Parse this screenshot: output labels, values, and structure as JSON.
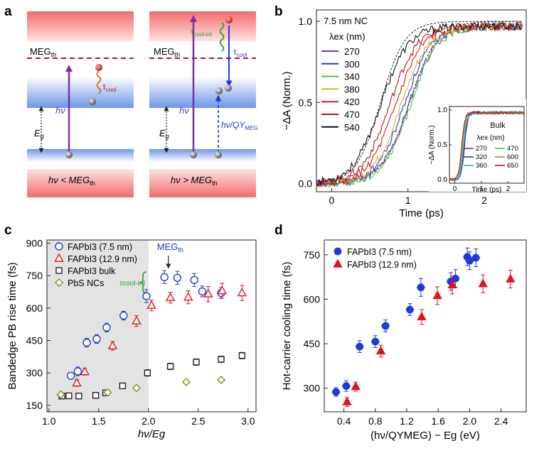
{
  "panels": {
    "a": {
      "label": "a",
      "left": {
        "meg_label": "MEG",
        "meg_sub": "th",
        "tau": "τ",
        "tau_sub": "cool",
        "hv": "hν",
        "eg": "E",
        "eg_sub": "g",
        "caption": "hν < MEG",
        "caption_sub": "th"
      },
      "right": {
        "meg_label": "MEG",
        "meg_sub": "th",
        "tau_int": "τ",
        "tau_int_sub": "cool-int",
        "tau": "τ",
        "tau_sub": "cool",
        "hv": "hν",
        "hv_qy": "hν/QY",
        "hv_qy_sub": "MEG",
        "eg": "E",
        "eg_sub": "g",
        "caption": "hν > MEG",
        "caption_sub": "th"
      }
    },
    "b": {
      "label": "b"
    },
    "c": {
      "label": "c"
    },
    "d": {
      "label": "d"
    }
  },
  "colors": {
    "purple": "#7b2fa8",
    "blue": "#2238d0",
    "red_dash": "#b0161c",
    "green": "#2aa02a",
    "orange": "#d26a1a",
    "gray_shade": "#e3e3e3",
    "olive": "#8a8a10",
    "red": "#e0141c",
    "pt_blue": "#1e3bd6"
  },
  "chart_data": [
    {
      "id": "b",
      "type": "line",
      "title": "7.5 nm NC",
      "xlabel": "Time (ps)",
      "ylabel": "−ΔA (Norm.)",
      "xlim": [
        -0.2,
        2.55
      ],
      "ylim": [
        -0.05,
        1.07
      ],
      "xticks": [
        0,
        1,
        2
      ],
      "yticks": [
        0.0,
        0.5,
        1.0
      ],
      "legend_title": "λex (nm)",
      "series": [
        {
          "name": "270",
          "color": "#7b2fa8",
          "t0": 1.01
        },
        {
          "name": "300",
          "color": "#2238d0",
          "t0": 0.95
        },
        {
          "name": "340",
          "color": "#3ccc3c",
          "t0": 1.03
        },
        {
          "name": "380",
          "color": "#e0b020",
          "t0": 0.91
        },
        {
          "name": "420",
          "color": "#e0141c",
          "t0": 0.84
        },
        {
          "name": "470",
          "color": "#a21a28",
          "t0": 0.76
        },
        {
          "name": "540",
          "color": "#111111",
          "t0": 0.64
        }
      ],
      "inset": {
        "title": "Bulk",
        "xlabel": "Time (ps)",
        "ylabel": "−ΔA (Norm.)",
        "xlim": [
          -0.2,
          2.6
        ],
        "ylim": [
          -0.05,
          1.05
        ],
        "xticks": [
          0,
          1,
          2
        ],
        "yticks": [
          0.0,
          0.5,
          1.0
        ],
        "legend_title": "λex (nm)",
        "series": [
          {
            "name": "270",
            "color": "#7b2fa8",
            "t0": 0.37
          },
          {
            "name": "320",
            "color": "#2238d0",
            "t0": 0.35
          },
          {
            "name": "360",
            "color": "#29b0c8",
            "t0": 0.33
          },
          {
            "name": "470",
            "color": "#3ccc3c",
            "t0": 0.3
          },
          {
            "name": "600",
            "color": "#e07020",
            "t0": 0.28
          },
          {
            "name": "650",
            "color": "#a21a28",
            "t0": 0.26
          }
        ]
      }
    },
    {
      "id": "c",
      "type": "scatter",
      "xlabel": "hν/Eg",
      "ylabel": "Bandedge PB rise time (fs)",
      "xlim": [
        0.98,
        3.08
      ],
      "ylim": [
        120,
        915
      ],
      "xticks": [
        1.0,
        1.5,
        2.0,
        2.5,
        3.0
      ],
      "yticks": [
        150,
        300,
        450,
        600,
        750,
        900
      ],
      "shade_x": [
        0.98,
        2.0
      ],
      "annotation_meg": "MEG",
      "annotation_meg_sub": "th",
      "annotation_meg_x": 2.2,
      "annotation_int": "τcool-int",
      "series": [
        {
          "name": "FAPbI3 (7.5 nm)",
          "marker": "circle",
          "color": "#1e3bd6",
          "x": [
            1.22,
            1.29,
            1.38,
            1.48,
            1.58,
            1.75,
            1.98,
            2.16,
            2.29,
            2.46,
            2.54,
            2.73
          ],
          "y": [
            287,
            307,
            440,
            457,
            510,
            565,
            655,
            743,
            740,
            730,
            677,
            670
          ],
          "err": [
            15,
            20,
            20,
            20,
            20,
            20,
            30,
            30,
            30,
            30,
            25,
            25
          ]
        },
        {
          "name": "FAPbI3 (12.9 nm)",
          "marker": "triangle",
          "color": "#e0141c",
          "x": [
            1.28,
            1.36,
            1.64,
            1.88,
            2.03,
            2.22,
            2.4,
            2.6,
            2.74,
            2.94
          ],
          "y": [
            253,
            305,
            425,
            540,
            612,
            648,
            650,
            665,
            680,
            670
          ],
          "err": [
            15,
            15,
            20,
            25,
            25,
            25,
            30,
            35,
            35,
            35
          ]
        },
        {
          "name": "FAPbI3 bulk",
          "marker": "square",
          "color": "#222222",
          "x": [
            1.13,
            1.2,
            1.3,
            1.47,
            1.57,
            1.74,
            1.99,
            2.22,
            2.48,
            2.73,
            2.94
          ],
          "y": [
            193,
            194,
            193,
            196,
            208,
            240,
            300,
            330,
            350,
            363,
            380
          ],
          "err": [
            8,
            8,
            8,
            8,
            10,
            10,
            15,
            15,
            15,
            15,
            15
          ]
        },
        {
          "name": "PbS NCs",
          "marker": "diamond",
          "color": "#8a8a10",
          "x": [
            1.12,
            1.59,
            1.88,
            2.38,
            2.73
          ],
          "y": [
            200,
            210,
            230,
            258,
            268
          ],
          "err": [
            0,
            0,
            0,
            0,
            0
          ]
        }
      ]
    },
    {
      "id": "d",
      "type": "scatter",
      "xlabel": "(hν/QYMEG) − Eg (eV)",
      "ylabel": "Hot-carrier cooling time (fs)",
      "xlim": [
        0.15,
        2.72
      ],
      "ylim": [
        220,
        800
      ],
      "xticks": [
        0.4,
        0.8,
        1.2,
        1.6,
        2.0,
        2.4
      ],
      "yticks": [
        300,
        450,
        600,
        750
      ],
      "series": [
        {
          "name": "FAPbI3 (7.5 nm)",
          "marker": "sphere",
          "color": "#1e3bd6",
          "x": [
            0.3,
            0.43,
            0.6,
            0.8,
            0.93,
            1.24,
            1.38,
            1.76,
            1.82,
            1.97,
            2.0,
            2.08
          ],
          "y": [
            287,
            307,
            440,
            457,
            510,
            565,
            640,
            660,
            670,
            743,
            730,
            740
          ],
          "err": [
            15,
            18,
            20,
            20,
            20,
            20,
            30,
            30,
            30,
            30,
            30,
            30
          ]
        },
        {
          "name": "FAPbI3 (12.9 nm)",
          "marker": "triangle",
          "color": "#e0141c",
          "x": [
            0.44,
            0.55,
            0.87,
            1.39,
            1.59,
            1.78,
            2.17,
            2.52
          ],
          "y": [
            253,
            305,
            425,
            540,
            612,
            648,
            652,
            668
          ],
          "err": [
            15,
            15,
            20,
            25,
            30,
            30,
            30,
            30
          ]
        }
      ]
    }
  ]
}
